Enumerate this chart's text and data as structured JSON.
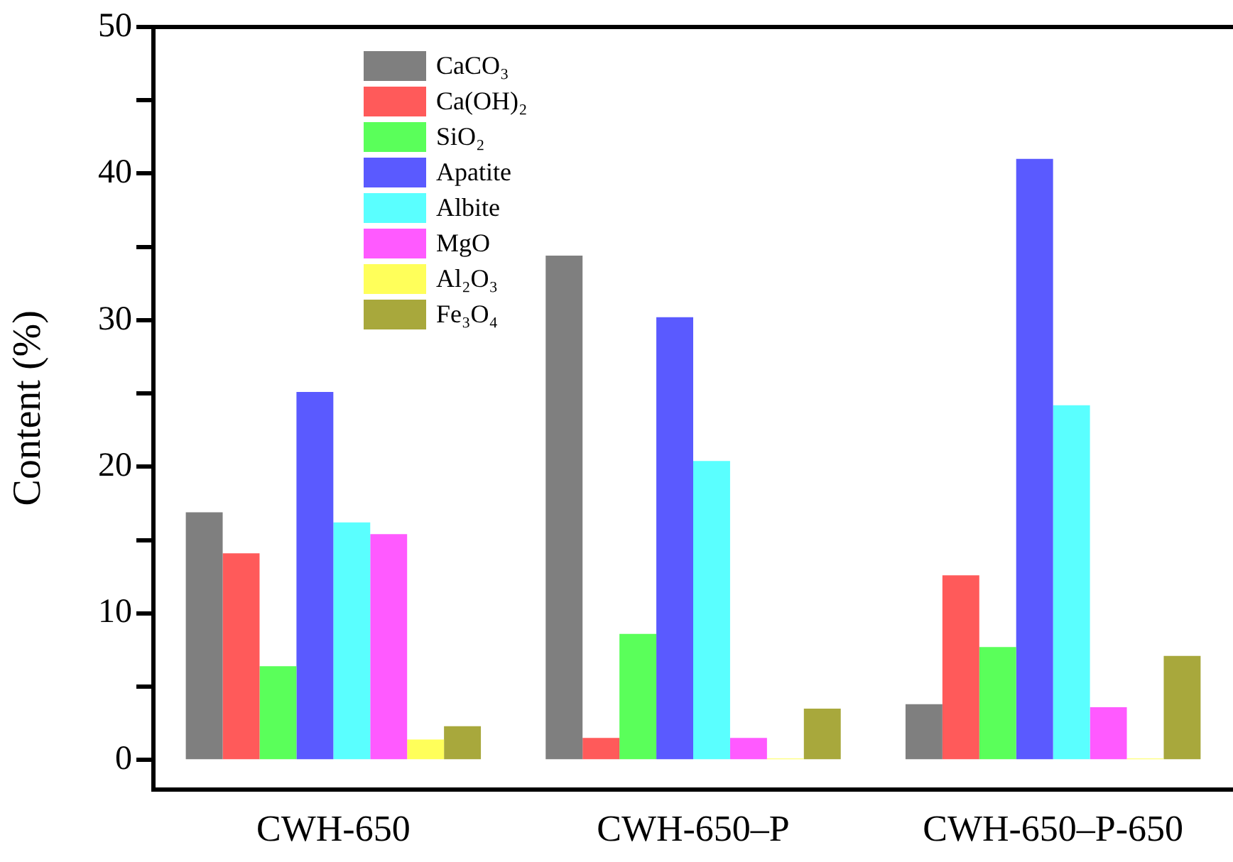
{
  "chart_data": {
    "type": "bar",
    "ylabel": "Content (%)",
    "categories": [
      "CWH-650",
      "CWH-650–P",
      "CWH-650–P-650"
    ],
    "series": [
      {
        "name": "CaCO₃",
        "color": "#7f7f7f",
        "values": [
          16.9,
          34.4,
          3.8
        ]
      },
      {
        "name": "Ca(OH)₂",
        "color": "#ff5a5a",
        "values": [
          14.1,
          1.5,
          12.6
        ]
      },
      {
        "name": "SiO₂",
        "color": "#5aff5a",
        "values": [
          6.4,
          8.6,
          7.7
        ]
      },
      {
        "name": "Apatite",
        "color": "#5a5aff",
        "values": [
          25.1,
          30.2,
          41.0
        ]
      },
      {
        "name": "Albite",
        "color": "#5affff",
        "values": [
          16.2,
          20.4,
          24.2
        ]
      },
      {
        "name": "MgO",
        "color": "#ff5aff",
        "values": [
          15.4,
          1.5,
          3.6
        ]
      },
      {
        "name": "Al₂O₃",
        "color": "#ffff5a",
        "values": [
          1.4,
          0.1,
          0.1
        ]
      },
      {
        "name": "Fe₃O₄",
        "color": "#a8a83c",
        "values": [
          2.3,
          3.5,
          7.1
        ]
      }
    ],
    "ylim": [
      -2,
      50
    ],
    "yticks": [
      0,
      {
        "value": 5,
        "label": null
      },
      10,
      {
        "value": 15,
        "label": null
      },
      20,
      {
        "value": 25,
        "label": null
      },
      30,
      {
        "value": 35,
        "label": null
      },
      40,
      {
        "value": 45,
        "label": null
      },
      50
    ],
    "grid": false,
    "legend": "top"
  }
}
